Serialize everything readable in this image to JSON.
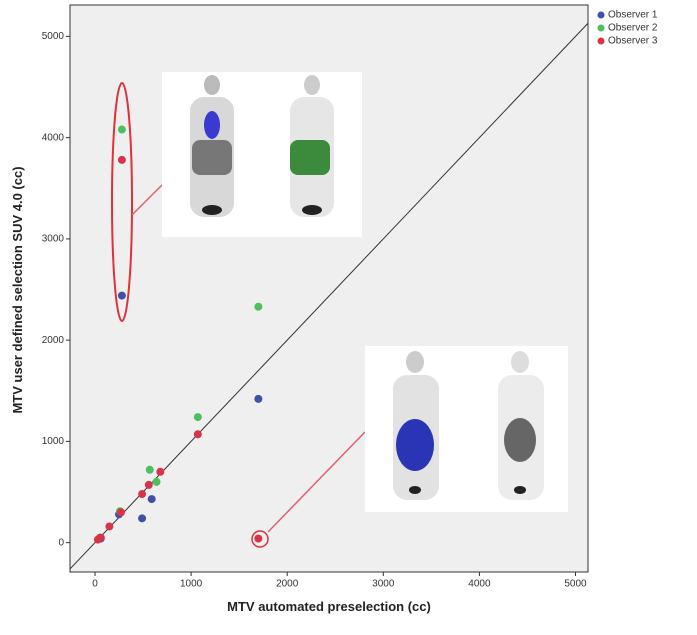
{
  "chart_data": {
    "type": "scatter",
    "x_label": "MTV automated preselection (cc)",
    "y_label": "MTV user defined selection SUV 4.0 (cc)",
    "xlim": [
      -260,
      5130
    ],
    "ylim": [
      -290,
      5310
    ],
    "xticks": [
      0,
      1000,
      2000,
      3000,
      4000,
      5000
    ],
    "yticks": [
      0,
      1000,
      2000,
      3000,
      4000,
      5000
    ],
    "identity_line": true,
    "legend": "right",
    "series": [
      {
        "name": "Observer 1",
        "color": "#3f51a5",
        "x": [
          280,
          1700,
          490,
          590,
          60,
          250
        ],
        "values": [
          2440,
          1420,
          240,
          430,
          40,
          280
        ]
      },
      {
        "name": "Observer 2",
        "color": "#4cbf5f",
        "x": [
          280,
          1700,
          1070,
          570,
          640,
          260,
          50
        ],
        "values": [
          4080,
          2330,
          1240,
          720,
          600,
          310,
          50
        ]
      },
      {
        "name": "Observer 3",
        "color": "#d9334a",
        "x": [
          280,
          1700,
          1070,
          680,
          560,
          490,
          270,
          150,
          60,
          30
        ],
        "values": [
          3780,
          40,
          1070,
          700,
          570,
          480,
          300,
          160,
          50,
          30
        ]
      }
    ]
  }
}
